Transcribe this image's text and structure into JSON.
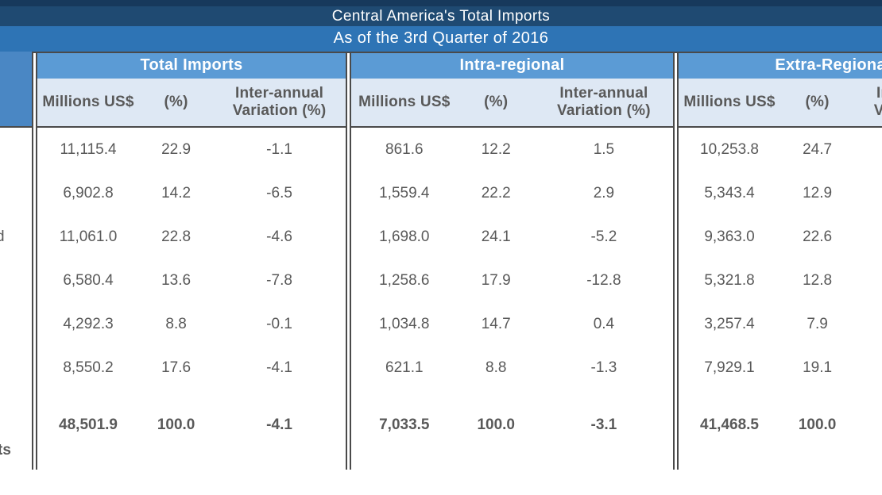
{
  "header": {
    "title": "Central America's Total Imports",
    "subtitle": "As of the 3rd Quarter of 2016"
  },
  "table": {
    "groups": [
      {
        "label": "Total Imports",
        "columns": [
          "Millions US$",
          "(%)",
          "Inter-annual Variation (%)"
        ]
      },
      {
        "label": "Intra-regional",
        "columns": [
          "Millions US$",
          "(%)",
          "Inter-annual Variation (%)"
        ]
      },
      {
        "label": "Extra-Regional",
        "columns": [
          "Millions US$",
          "(%)",
          "Inter-annual Variation (%)"
        ]
      }
    ],
    "row_label_fragments": {
      "row3": "d",
      "total": "ts"
    },
    "rows": [
      {
        "t": [
          "11,115.4",
          "22.9",
          "-1.1"
        ],
        "i": [
          "861.6",
          "12.2",
          "1.5"
        ],
        "e": [
          "10,253.8",
          "24.7",
          ""
        ]
      },
      {
        "t": [
          "6,902.8",
          "14.2",
          "-6.5"
        ],
        "i": [
          "1,559.4",
          "22.2",
          "2.9"
        ],
        "e": [
          "5,343.4",
          "12.9",
          ""
        ]
      },
      {
        "t": [
          "11,061.0",
          "22.8",
          "-4.6"
        ],
        "i": [
          "1,698.0",
          "24.1",
          "-5.2"
        ],
        "e": [
          "9,363.0",
          "22.6",
          ""
        ]
      },
      {
        "t": [
          "6,580.4",
          "13.6",
          "-7.8"
        ],
        "i": [
          "1,258.6",
          "17.9",
          "-12.8"
        ],
        "e": [
          "5,321.8",
          "12.8",
          ""
        ]
      },
      {
        "t": [
          "4,292.3",
          "8.8",
          "-0.1"
        ],
        "i": [
          "1,034.8",
          "14.7",
          "0.4"
        ],
        "e": [
          "3,257.4",
          "7.9",
          ""
        ]
      },
      {
        "t": [
          "8,550.2",
          "17.6",
          "-4.1"
        ],
        "i": [
          "621.1",
          "8.8",
          "-1.3"
        ],
        "e": [
          "7,929.1",
          "19.1",
          ""
        ]
      }
    ],
    "totals": {
      "t": [
        "48,501.9",
        "100.0",
        "-4.1"
      ],
      "i": [
        "7,033.5",
        "100.0",
        "-3.1"
      ],
      "e": [
        "41,468.5",
        "100.0",
        ""
      ]
    }
  },
  "colors": {
    "top_strip": "#17395c",
    "title_band": "#1f4a72",
    "subtitle_band": "#2e74b5",
    "group_header": "#5b9bd5",
    "subheader_bg": "#dee8f4",
    "left_strip": "#4a87c4",
    "border": "#4a4a4a",
    "text": "#595959"
  },
  "chart_data": {
    "type": "table",
    "title": "Central America's Total Imports",
    "subtitle": "As of the 3rd Quarter of 2016",
    "column_groups": [
      "Total Imports",
      "Intra-regional",
      "Extra-Regional"
    ],
    "columns": [
      "Total Imports - Millions US$",
      "Total Imports - (%)",
      "Total Imports - Inter-annual Variation (%)",
      "Intra-regional - Millions US$",
      "Intra-regional - (%)",
      "Intra-regional - Inter-annual Variation (%)",
      "Extra-Regional - Millions US$",
      "Extra-Regional - (%)"
    ],
    "rows": [
      [
        11115.4,
        22.9,
        -1.1,
        861.6,
        12.2,
        1.5,
        10253.8,
        24.7
      ],
      [
        6902.8,
        14.2,
        -6.5,
        1559.4,
        22.2,
        2.9,
        5343.4,
        12.9
      ],
      [
        11061.0,
        22.8,
        -4.6,
        1698.0,
        24.1,
        -5.2,
        9363.0,
        22.6
      ],
      [
        6580.4,
        13.6,
        -7.8,
        1258.6,
        17.9,
        -12.8,
        5321.8,
        12.8
      ],
      [
        4292.3,
        8.8,
        -0.1,
        1034.8,
        14.7,
        0.4,
        3257.4,
        7.9
      ],
      [
        8550.2,
        17.6,
        -4.1,
        621.1,
        8.8,
        -1.3,
        7929.1,
        19.1
      ]
    ],
    "total_row": [
      48501.9,
      100.0,
      -4.1,
      7033.5,
      100.0,
      -3.1,
      41468.5,
      100.0
    ],
    "layout_note": "Row-label column is cropped at the left image edge (fragments 'd' and 'ts' visible); Extra-Regional 'Inter-annual Variation (%)' column is cropped at the right image edge."
  }
}
